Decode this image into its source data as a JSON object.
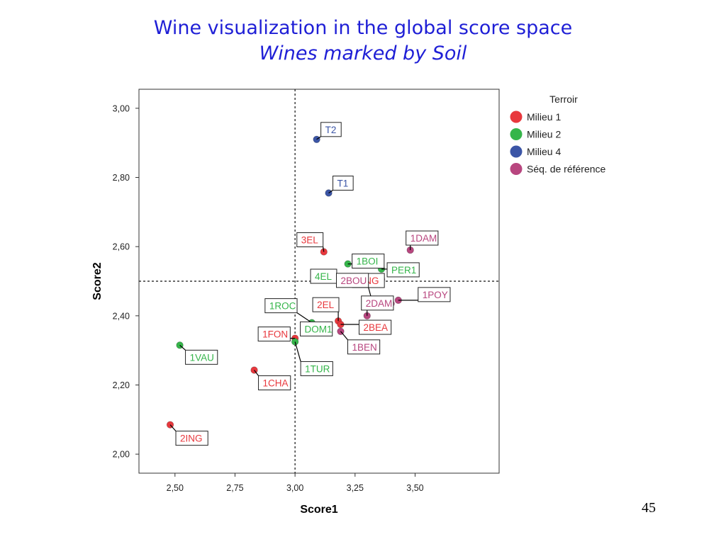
{
  "slide": {
    "title": "Wine visualization in the global score space",
    "subtitle": "Wines marked by Soil",
    "page_number": "45"
  },
  "colors": {
    "Milieu 1": "#e8383d",
    "Milieu 2": "#35b54a",
    "Milieu 4": "#3b55a6",
    "Séq. de référence": "#b8467f"
  },
  "chart_data": {
    "type": "scatter",
    "xlabel": "Score1",
    "ylabel": "Score2",
    "xlim": [
      2.35,
      3.85
    ],
    "ylim": [
      1.945,
      3.055
    ],
    "xticks": [
      2.5,
      2.75,
      3.0,
      3.25,
      3.5
    ],
    "yticks": [
      2.0,
      2.2,
      2.4,
      2.6,
      2.8,
      3.0
    ],
    "xtick_labels": [
      "2,50",
      "2,75",
      "3,00",
      "3,25",
      "3,50"
    ],
    "ytick_labels": [
      "2,00",
      "2,20",
      "2,40",
      "2,60",
      "2,80",
      "3,00"
    ],
    "reference_lines": {
      "x": 3.0,
      "y": 2.5
    },
    "legend": {
      "title": "Terroir",
      "position": "right",
      "entries": [
        "Milieu 1",
        "Milieu 2",
        "Milieu 4",
        "Séq. de référence"
      ]
    },
    "points": [
      {
        "label": "T2",
        "x": 3.09,
        "y": 2.91,
        "group": "Milieu 4"
      },
      {
        "label": "T1",
        "x": 3.14,
        "y": 2.755,
        "group": "Milieu 4"
      },
      {
        "label": "3EL",
        "x": 3.12,
        "y": 2.585,
        "group": "Milieu 1"
      },
      {
        "label": "1DAM",
        "x": 3.48,
        "y": 2.59,
        "group": "Séq. de référence"
      },
      {
        "label": "1BOI",
        "x": 3.22,
        "y": 2.55,
        "group": "Milieu 2"
      },
      {
        "label": "PER1",
        "x": 3.36,
        "y": 2.535,
        "group": "Milieu 2"
      },
      {
        "label": "4EL",
        "x": 3.23,
        "y": 2.5,
        "group": "Milieu 2"
      },
      {
        "label": "1ING",
        "x": 3.28,
        "y": 2.5,
        "group": "Milieu 1"
      },
      {
        "label": "",
        "x": 3.36,
        "y": 2.505,
        "group": "Séq. de référence"
      },
      {
        "label": "2BOU",
        "x": 3.32,
        "y": 2.445,
        "group": "Séq. de référence"
      },
      {
        "label": "1POY",
        "x": 3.43,
        "y": 2.445,
        "group": "Séq. de référence"
      },
      {
        "label": "",
        "x": 3.4,
        "y": 2.435,
        "group": "Séq. de référence"
      },
      {
        "label": "2DAM",
        "x": 3.3,
        "y": 2.4,
        "group": "Séq. de référence"
      },
      {
        "label": "1ROC",
        "x": 3.07,
        "y": 2.38,
        "group": "Milieu 2"
      },
      {
        "label": "2EL",
        "x": 3.18,
        "y": 2.385,
        "group": "Milieu 1"
      },
      {
        "label": "2BEA",
        "x": 3.19,
        "y": 2.375,
        "group": "Milieu 1"
      },
      {
        "label": "1BEN",
        "x": 3.19,
        "y": 2.355,
        "group": "Séq. de référence"
      },
      {
        "label": "1FON",
        "x": 3.0,
        "y": 2.335,
        "group": "Milieu 1"
      },
      {
        "label": "DOM1",
        "x": 3.14,
        "y": 2.36,
        "group": "Milieu 2"
      },
      {
        "label": "1TUR",
        "x": 3.0,
        "y": 2.325,
        "group": "Milieu 2"
      },
      {
        "label": "1VAU",
        "x": 2.52,
        "y": 2.315,
        "group": "Milieu 2"
      },
      {
        "label": "1CHA",
        "x": 2.83,
        "y": 2.243,
        "group": "Milieu 1"
      },
      {
        "label": "2ING",
        "x": 2.48,
        "y": 2.085,
        "group": "Milieu 1"
      }
    ]
  }
}
